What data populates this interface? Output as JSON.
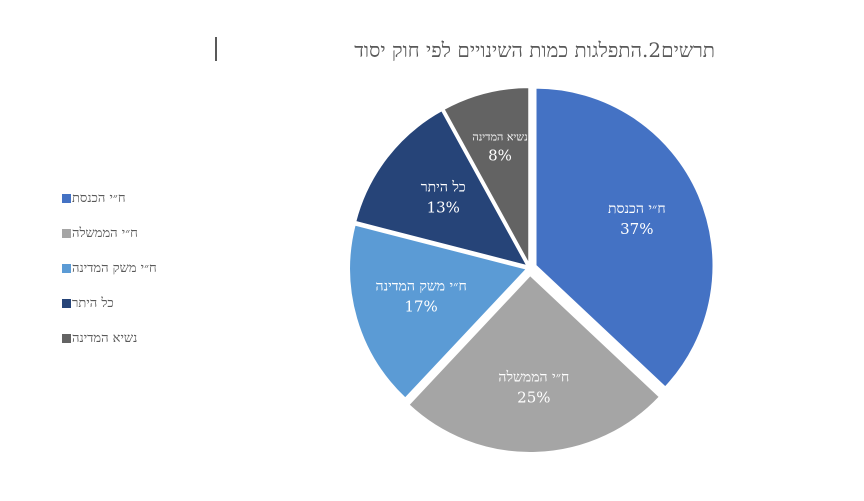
{
  "chart_data": {
    "type": "pie",
    "title": "תרשים2.התפלגות כמות השינויים לפי חוק יסוד",
    "legend_position": "left",
    "slices": [
      {
        "label": "ח״י הכנסת",
        "value": 37,
        "value_label": "37%",
        "color": "#4472c4"
      },
      {
        "label": "ח״י הממשלה",
        "value": 25,
        "value_label": "25%",
        "color": "#a5a5a5"
      },
      {
        "label": "ח״י משק המדינה",
        "value": 17,
        "value_label": "17%",
        "color": "#5b9bd5"
      },
      {
        "label": "כל היתר",
        "value": 13,
        "value_label": "13%",
        "color": "#264478"
      },
      {
        "label": "נשיא המדינה",
        "value": 8,
        "value_label": "8%",
        "color": "#636363"
      }
    ]
  }
}
